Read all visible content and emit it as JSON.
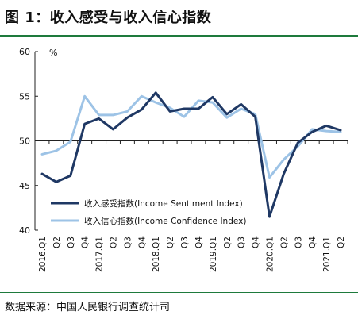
{
  "figure": {
    "title": "图 1：收入感受与收入信心指数",
    "source": "数据来源：中国人民银行调查统计司"
  },
  "chart_data": {
    "type": "line",
    "title": "图 1：收入感受与收入信心指数",
    "ylabel": "%",
    "ylim": [
      40,
      60
    ],
    "yticks": [
      40,
      45,
      50,
      55,
      60
    ],
    "x": [
      "2016Q1",
      "2016Q2",
      "2016Q3",
      "2016Q4",
      "2017Q1",
      "2017Q2",
      "2017Q3",
      "2017Q4",
      "2018Q1",
      "2018Q2",
      "2018Q3",
      "2018Q4",
      "2019Q1",
      "2019Q2",
      "2019Q3",
      "2019Q4",
      "2020Q1",
      "2020Q2",
      "2020Q3",
      "2020Q4",
      "2021Q1",
      "2021Q2"
    ],
    "xtick_labels": [
      "2016.Q1",
      "Q2",
      "Q3",
      "Q4",
      "2017.Q1",
      "Q2",
      "Q3",
      "Q4",
      "2018.Q1",
      "Q2",
      "Q3",
      "Q4",
      "2019.Q1",
      "Q2",
      "Q3",
      "Q4",
      "2020.Q1",
      "Q2",
      "Q3",
      "Q4",
      "2021.Q1",
      "Q2"
    ],
    "grid": false,
    "series": [
      {
        "name": "收入感受指数(Income Sentiment Index)",
        "color": "#1f3864",
        "values": [
          46.3,
          45.4,
          46.1,
          51.9,
          52.5,
          51.3,
          52.6,
          53.5,
          55.4,
          53.3,
          53.6,
          53.6,
          54.9,
          53.0,
          54.1,
          52.7,
          41.5,
          46.3,
          49.8,
          51.0,
          51.7,
          51.2
        ]
      },
      {
        "name": "收入信心指数(Income Confidence Index)",
        "color": "#9dc3e6",
        "values": [
          48.5,
          48.9,
          49.9,
          55.0,
          52.9,
          52.9,
          53.3,
          55.0,
          54.3,
          53.7,
          52.7,
          54.5,
          54.3,
          52.6,
          53.6,
          53.0,
          45.9,
          47.9,
          49.4,
          51.3,
          51.1,
          51.0
        ]
      }
    ],
    "legend_position": "bottom-left"
  }
}
